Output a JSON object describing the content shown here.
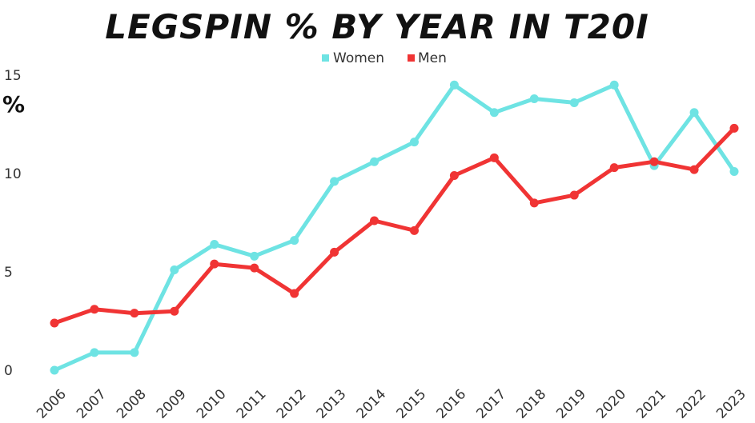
{
  "chart_data": {
    "type": "line",
    "title": "LEGSPIN % BY YEAR IN T20I",
    "xlabel": "",
    "ylabel": "%",
    "x": [
      "2006",
      "2007",
      "2008",
      "2009",
      "2010",
      "2011",
      "2012",
      "2013",
      "2014",
      "2015",
      "2016",
      "2017",
      "2018",
      "2019",
      "2020",
      "2021",
      "2022",
      "2023"
    ],
    "ylim": [
      0,
      15
    ],
    "yticks": [
      "0",
      "5",
      "10",
      "15"
    ],
    "legend_position": "top-center",
    "grid": false,
    "series": [
      {
        "name": "Women",
        "color": "#6ee3e3",
        "values": [
          0.0,
          0.9,
          0.9,
          5.1,
          6.4,
          5.8,
          6.6,
          9.6,
          10.6,
          11.6,
          14.5,
          13.1,
          13.8,
          13.6,
          14.5,
          10.4,
          13.1,
          10.1
        ]
      },
      {
        "name": "Men",
        "color": "#f03434",
        "values": [
          2.4,
          3.1,
          2.9,
          3.0,
          5.4,
          5.2,
          3.9,
          6.0,
          7.6,
          7.1,
          9.9,
          10.8,
          8.5,
          8.9,
          10.3,
          10.6,
          10.2,
          12.3
        ]
      }
    ]
  }
}
